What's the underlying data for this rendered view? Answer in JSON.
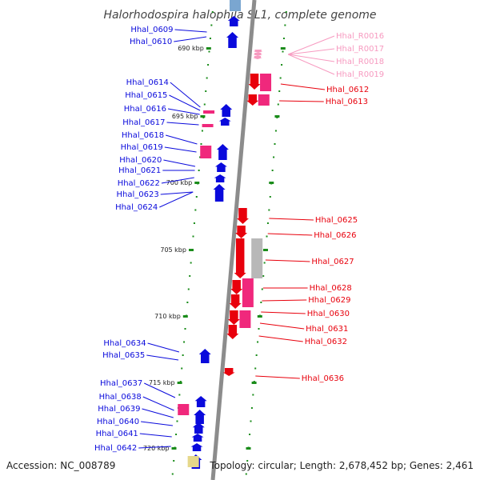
{
  "title": "Halorhodospira halophila SL1, complete genome",
  "footer": {
    "accession": "Accession: NC_008789",
    "summary": "Topology: circular; Length: 2,678,452 bp; Genes: 2,461"
  },
  "colors": {
    "forward": "#0a0adc",
    "reverse": "#e8000c",
    "rna": "#f0287c",
    "rna_light": "#f79ac0",
    "pseudo": "#b8b8b8",
    "other": "#e6d88a",
    "backbone": "#8c8c8c",
    "ticks": "#1a8c1a"
  },
  "kbp_ticks": [
    "690 kbp",
    "695 kbp",
    "700 kbp",
    "705 kbp",
    "710 kbp",
    "715 kbp",
    "720 kbp"
  ],
  "left_labels": [
    "Hhal_0609",
    "Hhal_0610",
    "Hhal_0614",
    "Hhal_0615",
    "Hhal_0616",
    "Hhal_0617",
    "Hhal_0618",
    "Hhal_0619",
    "Hhal_0620",
    "Hhal_0621",
    "Hhal_0622",
    "Hhal_0623",
    "Hhal_0624",
    "Hhal_0634",
    "Hhal_0635",
    "Hhal_0637",
    "Hhal_0638",
    "Hhal_0639",
    "Hhal_0640",
    "Hhal_0641",
    "Hhal_0642"
  ],
  "right_rna_labels": [
    "Hhal_R0016",
    "Hhal_R0017",
    "Hhal_R0018",
    "Hhal_R0019"
  ],
  "right_labels": [
    "Hhal_0612",
    "Hhal_0613",
    "Hhal_0625",
    "Hhal_0626",
    "Hhal_0627",
    "Hhal_0628",
    "Hhal_0629",
    "Hhal_0630",
    "Hhal_0631",
    "Hhal_0632",
    "Hhal_0636"
  ]
}
